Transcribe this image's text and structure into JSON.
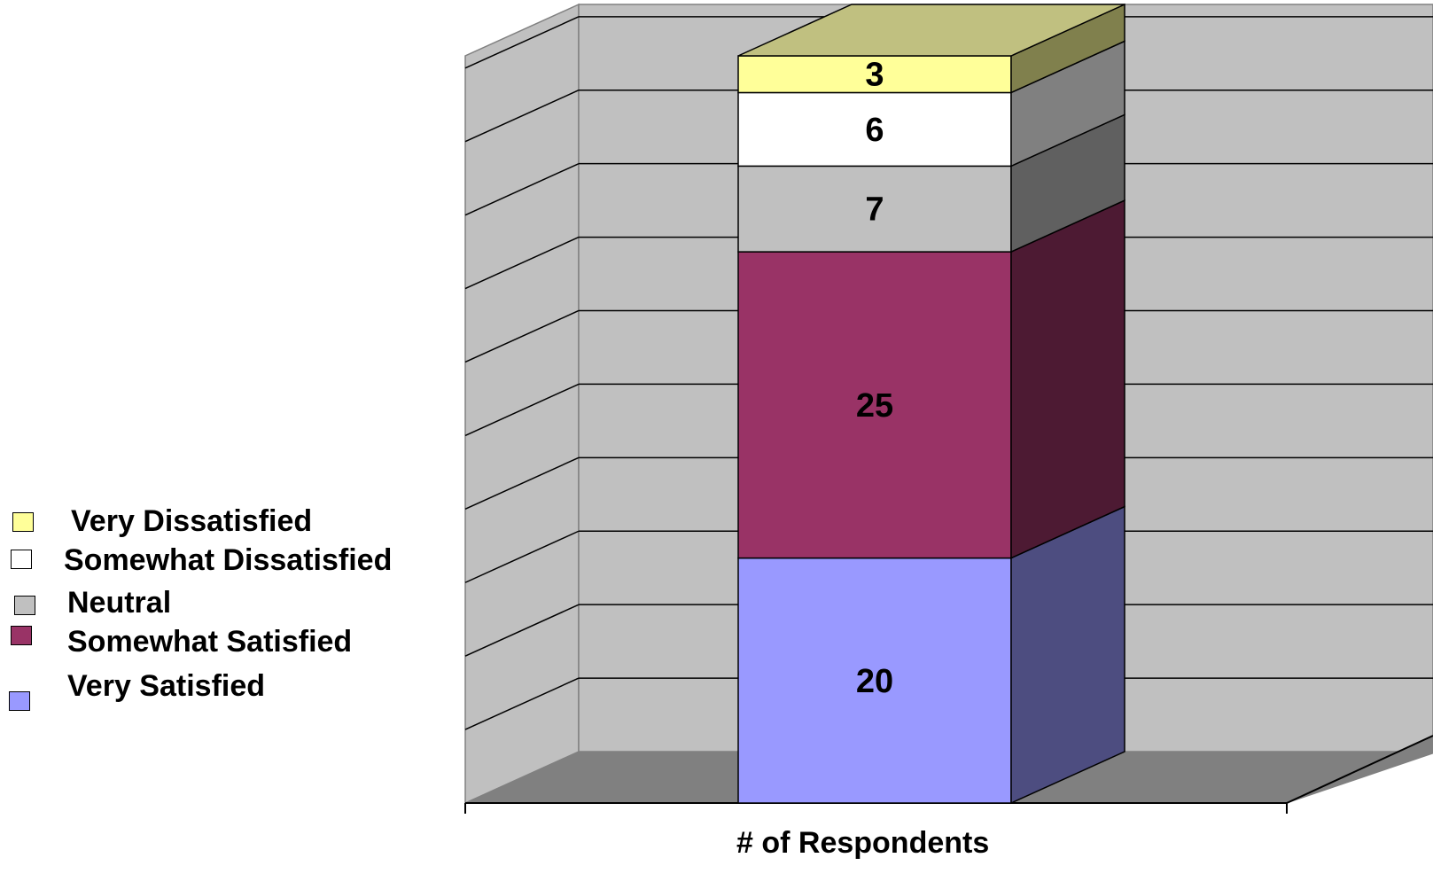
{
  "chart_data": {
    "type": "bar",
    "stacked": true,
    "three_d": true,
    "categories": [
      "# of Respondents"
    ],
    "xlabel": "# of Respondents",
    "ylabel": "",
    "ylim": [
      0,
      61
    ],
    "grid": true,
    "legend_position": "left",
    "series": [
      {
        "name": "Very Satisfied",
        "values": [
          20
        ],
        "color": "#9999FF",
        "side_color": "#4D4D80",
        "label": "20"
      },
      {
        "name": "Somewhat Satisfied",
        "values": [
          25
        ],
        "color": "#993366",
        "side_color": "#4D1A33",
        "label": "25"
      },
      {
        "name": "Neutral",
        "values": [
          7
        ],
        "color": "#C0C0C0",
        "side_color": "#606060",
        "label": "7"
      },
      {
        "name": "Somewhat Dissatisfied",
        "values": [
          6
        ],
        "color": "#FFFFFF",
        "side_color": "#808080",
        "label": "6"
      },
      {
        "name": "Very Dissatisfied",
        "values": [
          3
        ],
        "color": "#FFFF99",
        "side_color": "#80804D",
        "top_color": "#C0C080",
        "label": "3"
      }
    ],
    "wall_color": "#C0C0C0",
    "floor_color": "#808080"
  },
  "legend": {
    "items": [
      {
        "label": "Very Dissatisfied",
        "color": "#FFFF99"
      },
      {
        "label": "Somewhat Dissatisfied",
        "color": "#FFFFFF"
      },
      {
        "label": "Neutral",
        "color": "#C0C0C0"
      },
      {
        "label": "Somewhat Satisfied",
        "color": "#993366"
      },
      {
        "label": "Very Satisfied",
        "color": "#9999FF"
      }
    ]
  }
}
